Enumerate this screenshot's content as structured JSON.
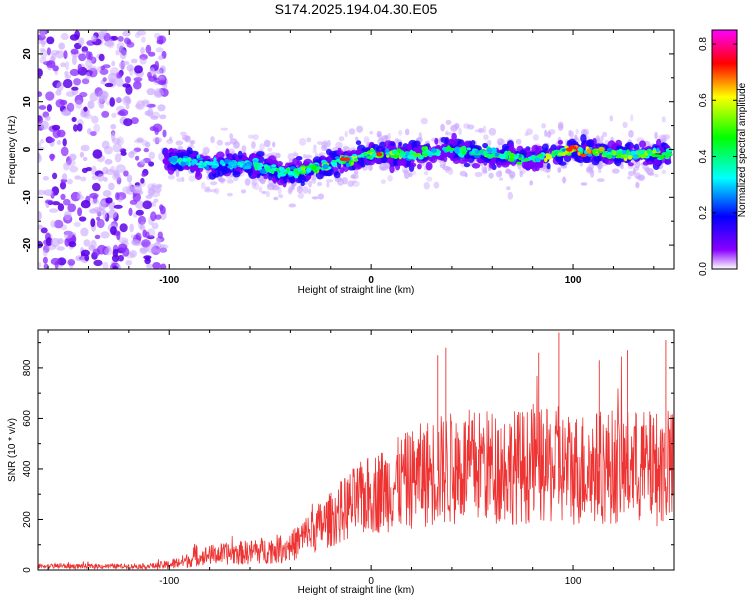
{
  "title": "S174.2025.194.04.30.E05",
  "chart_data": [
    {
      "type": "heatmap",
      "description": "spectrogram of frequency vs height of straight line",
      "xlabel": "Height of straight line (km)",
      "ylabel": "Frequency (Hz)",
      "xlim": [
        -165,
        150
      ],
      "ylim": [
        -25,
        25
      ],
      "x_ticks": [
        "-100",
        "0",
        "100"
      ],
      "y_ticks": [
        "-20",
        "-10",
        "0",
        "10",
        "20"
      ],
      "colorbar": {
        "label": "Normalized spectral amplitude",
        "range": [
          0.0,
          0.85
        ],
        "ticks": [
          "0.0",
          "0.2",
          "0.4",
          "0.6",
          "0.8"
        ]
      },
      "ridge": {
        "x": [
          -100,
          -80,
          -60,
          -40,
          -20,
          0,
          20,
          40,
          60,
          80,
          100,
          120,
          148
        ],
        "frequency": [
          -2,
          -3,
          -3,
          -5,
          -3,
          -1,
          -1,
          0,
          -1,
          -2,
          0,
          -1,
          -1
        ],
        "peak_amplitude": [
          0.35,
          0.3,
          0.35,
          0.45,
          0.6,
          0.55,
          0.5,
          0.45,
          0.5,
          0.45,
          0.75,
          0.55,
          0.5
        ]
      },
      "noise_region_x": [
        -165,
        -102
      ]
    },
    {
      "type": "line",
      "xlabel": "Height of straight line (km)",
      "ylabel": "SNR (10 * v/v)",
      "xlim": [
        -165,
        150
      ],
      "ylim": [
        0,
        950
      ],
      "x_ticks": [
        "-100",
        "0",
        "100"
      ],
      "y_ticks": [
        "0",
        "200",
        "400",
        "600",
        "800"
      ],
      "color": "#ee3333",
      "envelope": {
        "x": [
          -165,
          -110,
          -100,
          -90,
          -80,
          -60,
          -40,
          -30,
          -20,
          -10,
          0,
          10,
          20,
          30,
          40,
          50,
          60,
          80,
          100,
          120,
          148
        ],
        "mean": [
          15,
          15,
          20,
          40,
          60,
          70,
          90,
          150,
          200,
          260,
          300,
          330,
          360,
          390,
          400,
          410,
          410,
          410,
          400,
          410,
          400
        ],
        "amplitude": [
          10,
          10,
          20,
          30,
          40,
          50,
          60,
          90,
          110,
          140,
          160,
          180,
          200,
          220,
          230,
          230,
          230,
          230,
          230,
          230,
          230
        ]
      },
      "spikes": [
        {
          "x": 33,
          "y": 850
        },
        {
          "x": 37,
          "y": 880
        },
        {
          "x": 83,
          "y": 860
        },
        {
          "x": 93,
          "y": 940
        },
        {
          "x": 113,
          "y": 830
        },
        {
          "x": 127,
          "y": 870
        },
        {
          "x": 146,
          "y": 910
        }
      ]
    }
  ]
}
